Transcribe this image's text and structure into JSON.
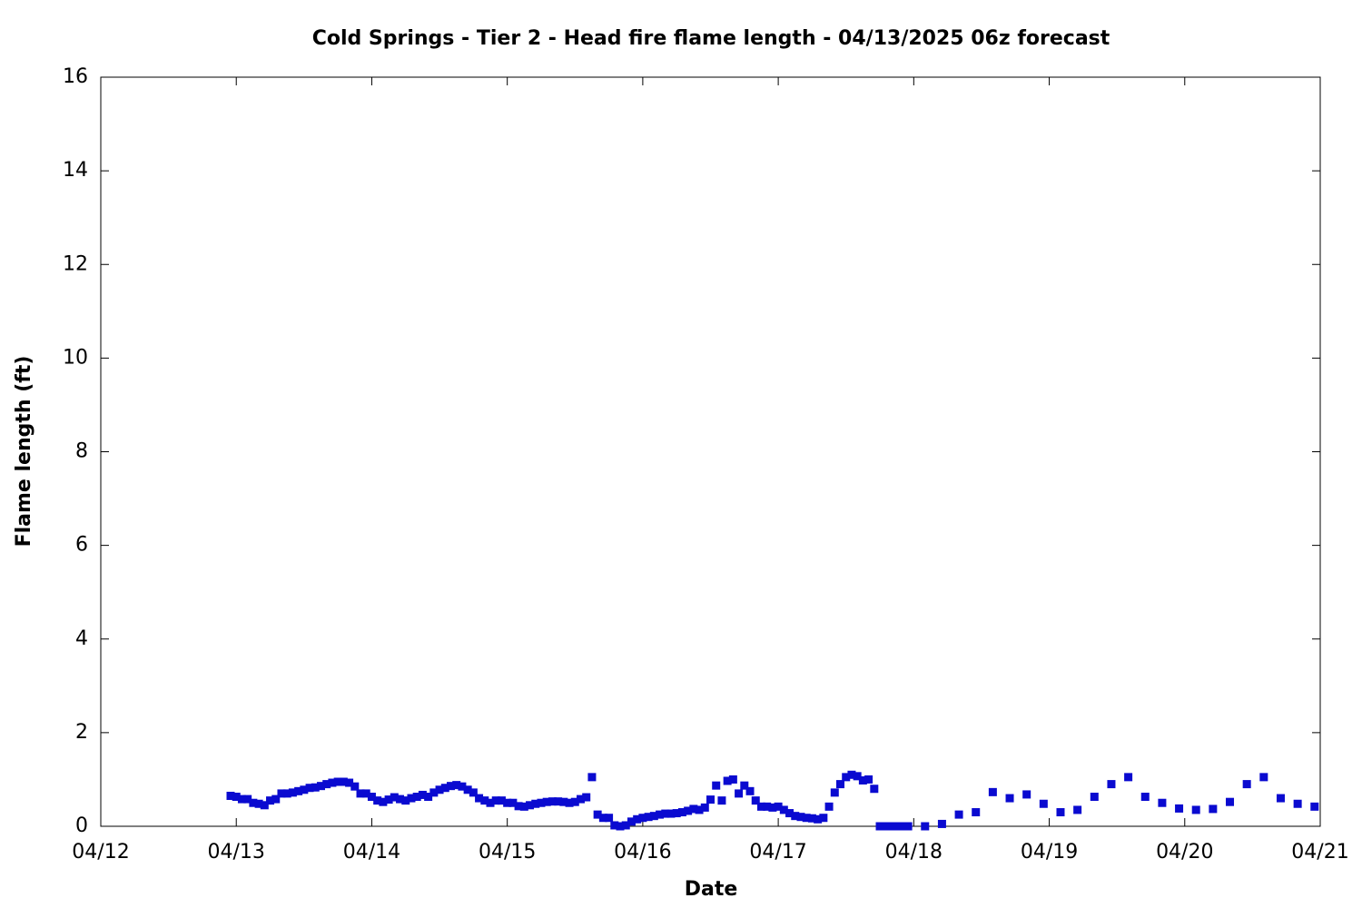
{
  "chart_data": {
    "type": "scatter",
    "title": "Cold Springs - Tier 2 - Head fire flame length - 04/13/2025 06z forecast",
    "xlabel": "Date",
    "ylabel": "Flame length (ft)",
    "xlim": [
      0,
      216
    ],
    "xticks": [
      {
        "value": 0,
        "label": "04/12"
      },
      {
        "value": 24,
        "label": "04/13"
      },
      {
        "value": 48,
        "label": "04/14"
      },
      {
        "value": 72,
        "label": "04/15"
      },
      {
        "value": 96,
        "label": "04/16"
      },
      {
        "value": 120,
        "label": "04/17"
      },
      {
        "value": 144,
        "label": "04/18"
      },
      {
        "value": 168,
        "label": "04/19"
      },
      {
        "value": 192,
        "label": "04/20"
      },
      {
        "value": 216,
        "label": "04/21"
      }
    ],
    "ylim": [
      0,
      16
    ],
    "yticks": [
      0,
      2,
      4,
      6,
      8,
      10,
      12,
      14,
      16
    ],
    "color": "#0a0ad0",
    "x": [
      23,
      24,
      25,
      26,
      27,
      28,
      29,
      30,
      31,
      32,
      33,
      34,
      35,
      36,
      37,
      38,
      39,
      40,
      41,
      42,
      43,
      44,
      45,
      46,
      47,
      48,
      49,
      50,
      51,
      52,
      53,
      54,
      55,
      56,
      57,
      58,
      59,
      60,
      61,
      62,
      63,
      64,
      65,
      66,
      67,
      68,
      69,
      70,
      71,
      72,
      73,
      74,
      75,
      76,
      77,
      78,
      79,
      80,
      81,
      82,
      83,
      84,
      85,
      86,
      87,
      88,
      89,
      90,
      91,
      92,
      93,
      94,
      95,
      96,
      97,
      98,
      99,
      100,
      101,
      102,
      103,
      104,
      105,
      106,
      107,
      108,
      109,
      110,
      111,
      112,
      113,
      114,
      115,
      116,
      117,
      118,
      119,
      120,
      121,
      122,
      123,
      124,
      125,
      126,
      127,
      128,
      129,
      130,
      131,
      132,
      133,
      134,
      135,
      136,
      137,
      138,
      139,
      140,
      141,
      142,
      143,
      146,
      149,
      152,
      155,
      158,
      161,
      164,
      167,
      170,
      173,
      176,
      179,
      182,
      185,
      188,
      191,
      194,
      197,
      200,
      203,
      206,
      209,
      212,
      215
    ],
    "values": [
      0.65,
      0.63,
      0.58,
      0.58,
      0.5,
      0.48,
      0.45,
      0.55,
      0.58,
      0.7,
      0.7,
      0.72,
      0.75,
      0.78,
      0.82,
      0.83,
      0.86,
      0.9,
      0.93,
      0.95,
      0.95,
      0.93,
      0.85,
      0.7,
      0.7,
      0.63,
      0.55,
      0.52,
      0.57,
      0.62,
      0.58,
      0.55,
      0.6,
      0.63,
      0.67,
      0.63,
      0.72,
      0.78,
      0.82,
      0.86,
      0.88,
      0.85,
      0.78,
      0.72,
      0.6,
      0.55,
      0.5,
      0.55,
      0.55,
      0.5,
      0.5,
      0.43,
      0.42,
      0.45,
      0.48,
      0.5,
      0.52,
      0.53,
      0.53,
      0.52,
      0.5,
      0.52,
      0.58,
      0.62,
      1.05,
      0.25,
      0.18,
      0.18,
      0.02,
      0.0,
      0.02,
      0.1,
      0.15,
      0.18,
      0.2,
      0.22,
      0.25,
      0.27,
      0.27,
      0.28,
      0.3,
      0.33,
      0.37,
      0.35,
      0.4,
      0.57,
      0.87,
      0.55,
      0.97,
      1.0,
      0.7,
      0.87,
      0.75,
      0.55,
      0.42,
      0.42,
      0.4,
      0.42,
      0.35,
      0.28,
      0.22,
      0.2,
      0.18,
      0.17,
      0.15,
      0.18,
      0.42,
      0.72,
      0.9,
      1.05,
      1.1,
      1.07,
      0.98,
      1.0,
      0.8,
      0.0,
      0.0,
      0.0,
      0.0,
      0.0,
      0.0,
      0.0,
      0.05,
      0.25,
      0.3,
      0.73,
      0.6,
      0.68,
      0.48,
      0.3,
      0.35,
      0.63,
      0.9,
      1.05,
      0.63,
      0.5,
      0.38,
      0.35,
      0.37,
      0.52,
      0.9,
      1.05,
      0.6,
      0.48,
      0.42
    ]
  }
}
